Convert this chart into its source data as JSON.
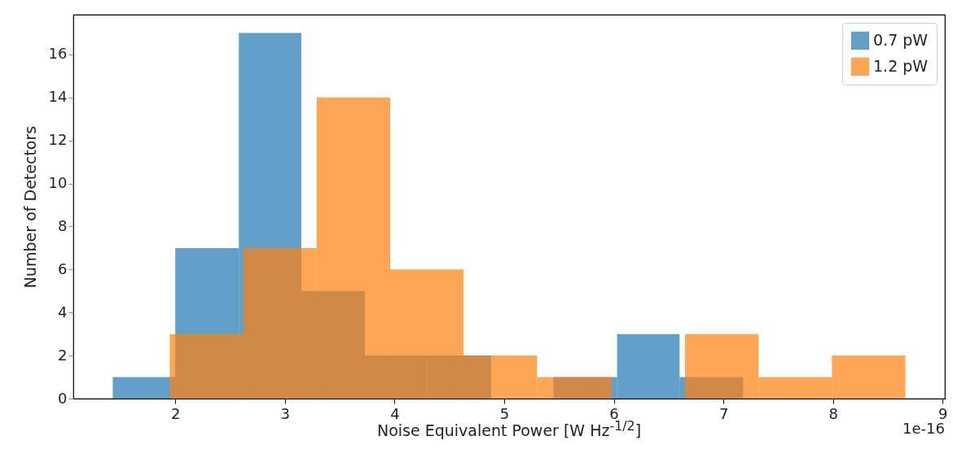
{
  "chart_data": {
    "type": "histogram",
    "xlabel": "Noise Equivalent Power [W Hz$^{-1/2}$]",
    "ylabel": "Number of Detectors",
    "bins": [
      1.43,
      2.0,
      2.58,
      3.15,
      3.73,
      4.3,
      4.88,
      5.45,
      6.03,
      6.6,
      7.18
    ],
    "series": [
      {
        "name": "0.7 pW",
        "color": "#1f77b4",
        "values": [
          1,
          7,
          17,
          5,
          2,
          2,
          0,
          1,
          3,
          1
        ]
      },
      {
        "name": "1.2 pW",
        "color": "#ff7f0e",
        "bins": [
          1.95,
          2.62,
          3.29,
          3.96,
          4.63,
          5.3,
          5.98,
          6.65,
          7.32,
          7.99,
          8.66
        ],
        "values": [
          3,
          7,
          14,
          6,
          2,
          1,
          0,
          3,
          1,
          2
        ]
      }
    ],
    "xlim": [
      1.07,
      9.02
    ],
    "xticks": [
      2,
      3,
      4,
      5,
      6,
      7,
      8,
      9
    ],
    "ylim": [
      0,
      17.85
    ],
    "yticks": [
      0,
      2,
      4,
      6,
      8,
      10,
      12,
      14,
      16
    ],
    "legend": "top right",
    "grid": false,
    "annotations": [
      "1e-16"
    ]
  }
}
